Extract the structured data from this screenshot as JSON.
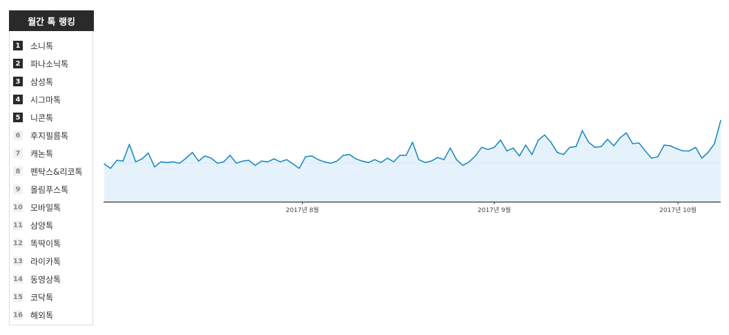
{
  "ranking": {
    "title": "월간 톡 랭킹",
    "items": [
      {
        "rank": "1",
        "label": "소니톡"
      },
      {
        "rank": "2",
        "label": "파나소닉톡"
      },
      {
        "rank": "3",
        "label": "삼성톡"
      },
      {
        "rank": "4",
        "label": "시그마톡"
      },
      {
        "rank": "5",
        "label": "니콘톡"
      },
      {
        "rank": "6",
        "label": "후지필름톡"
      },
      {
        "rank": "7",
        "label": "캐논톡"
      },
      {
        "rank": "8",
        "label": "펜탁스&리코톡"
      },
      {
        "rank": "9",
        "label": "올림푸스톡"
      },
      {
        "rank": "10",
        "label": "모바일톡"
      },
      {
        "rank": "11",
        "label": "삼양톡"
      },
      {
        "rank": "12",
        "label": "똑딱이톡"
      },
      {
        "rank": "13",
        "label": "라이카톡"
      },
      {
        "rank": "14",
        "label": "동영상톡"
      },
      {
        "rank": "15",
        "label": "코닥톡"
      },
      {
        "rank": "16",
        "label": "해외톡"
      }
    ]
  },
  "colors": {
    "line": "#1a8bbf",
    "fill": "#e6f2fb",
    "header_bg": "#2a2a2a"
  },
  "chart_data": {
    "type": "area",
    "title": "",
    "xlabel": "",
    "ylabel": "",
    "x_ticks": [
      "2017년 8월",
      "2017년 9월",
      "2017년 10월"
    ],
    "x_tick_positions": [
      31.5,
      62,
      91.2
    ],
    "grid": false,
    "series": [
      {
        "values": [
          52,
          46,
          57,
          56,
          79,
          55,
          59,
          67,
          48,
          55,
          54,
          55,
          53,
          60,
          68,
          56,
          63,
          60,
          53,
          55,
          64,
          53,
          56,
          57,
          50,
          56,
          55,
          59,
          55,
          58,
          52,
          46,
          62,
          63,
          58,
          55,
          53,
          56,
          64,
          65,
          59,
          56,
          54,
          58,
          54,
          60,
          55,
          64,
          64,
          82,
          58,
          54,
          56,
          61,
          58,
          74,
          58,
          50,
          55,
          63,
          75,
          72,
          75,
          85,
          70,
          74,
          63,
          78,
          65,
          85,
          92,
          82,
          68,
          65,
          75,
          76,
          98,
          82,
          75,
          76,
          86,
          77,
          88,
          95,
          80,
          81,
          70,
          60,
          62,
          78,
          77,
          73,
          70,
          70,
          75,
          60,
          68,
          80,
          112
        ]
      }
    ]
  }
}
